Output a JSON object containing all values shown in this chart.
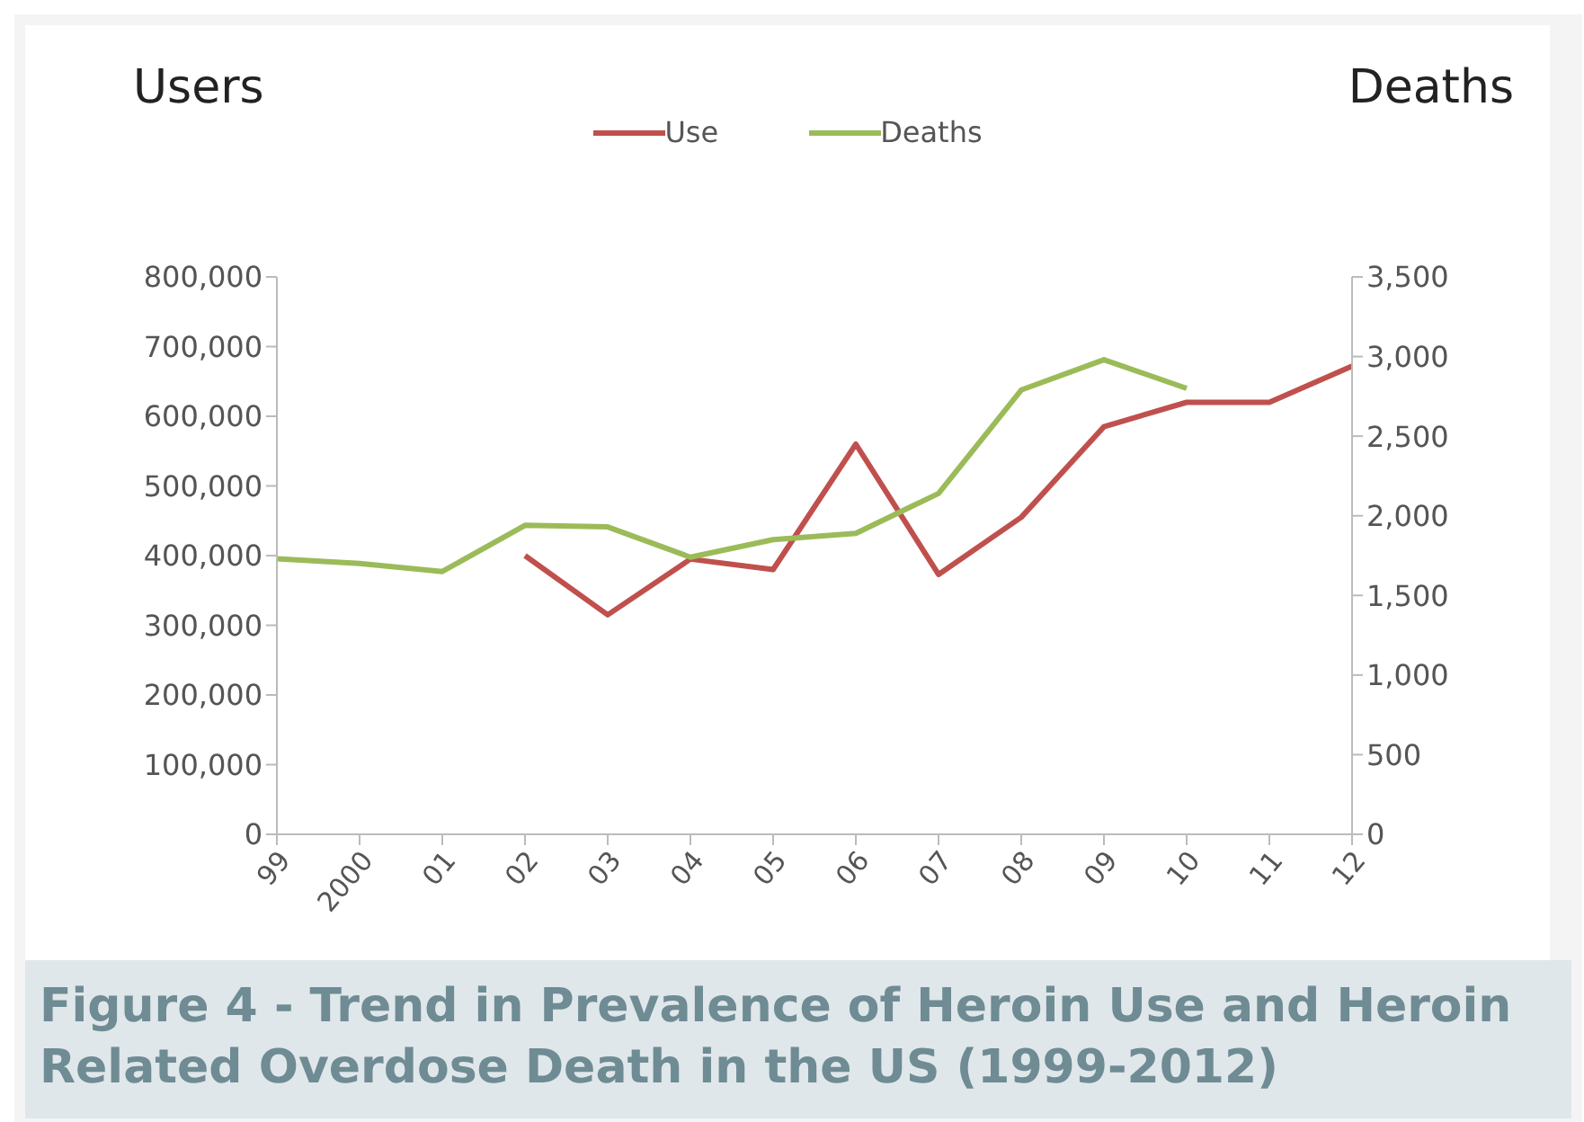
{
  "chart_data": {
    "type": "line",
    "title": "Figure 4 - Trend in Prevalence of Heroin Use and Heroin Related Overdose Death in the US (1999-2012)",
    "ylabel": "Users",
    "y2label": "Deaths",
    "categories": [
      "99",
      "2000",
      "01",
      "02",
      "03",
      "04",
      "05",
      "06",
      "07",
      "08",
      "09",
      "10",
      "11",
      "12"
    ],
    "series": [
      {
        "name": "Use",
        "color": "#c0504d",
        "values": [
          null,
          null,
          null,
          400000,
          315000,
          395000,
          380000,
          560000,
          373000,
          455000,
          585000,
          620000,
          620000,
          672000
        ]
      },
      {
        "name": "Deaths",
        "color": "#9bbb59",
        "axis": "y2",
        "values": [
          1730,
          1700,
          1650,
          1940,
          1930,
          1740,
          1850,
          1890,
          2140,
          2790,
          2980,
          2800,
          null,
          null
        ]
      }
    ],
    "ylim": [
      0,
      800000
    ],
    "yticks": [
      {
        "value": 0,
        "label": "0"
      },
      {
        "value": 100000,
        "label": "100,000"
      },
      {
        "value": 200000,
        "label": "200,000"
      },
      {
        "value": 300000,
        "label": "300,000"
      },
      {
        "value": 400000,
        "label": "400,000"
      },
      {
        "value": 500000,
        "label": "500,000"
      },
      {
        "value": 600000,
        "label": "600,000"
      },
      {
        "value": 700000,
        "label": "700,000"
      },
      {
        "value": 800000,
        "label": "800,000"
      }
    ],
    "y2lim": [
      0,
      3500
    ],
    "y2ticks": [
      {
        "value": 0,
        "label": "0"
      },
      {
        "value": 500,
        "label": "500"
      },
      {
        "value": 1000,
        "label": "1,000"
      },
      {
        "value": 1500,
        "label": "1,500"
      },
      {
        "value": 2000,
        "label": "2,000"
      },
      {
        "value": 2500,
        "label": "2,500"
      },
      {
        "value": 3000,
        "label": "3,000"
      },
      {
        "value": 3500,
        "label": "3,500"
      }
    ],
    "grid": false,
    "legend": "top",
    "marker": "none",
    "line_style": "solid"
  }
}
